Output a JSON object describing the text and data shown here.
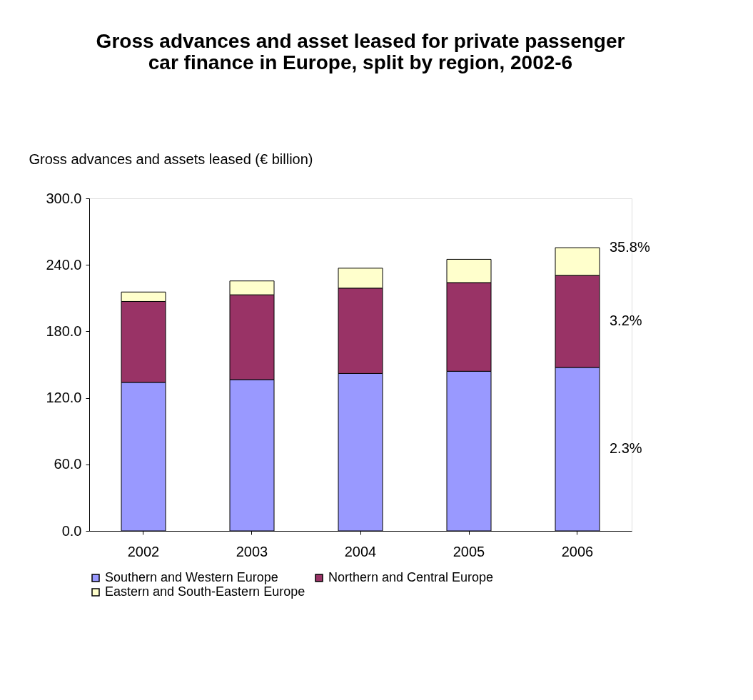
{
  "chart_data": {
    "type": "bar",
    "stacked": true,
    "title": [
      "Gross advances and asset leased for private passenger",
      "car finance in Europe, split by region, 2002-6"
    ],
    "ylabel": "Gross advances and assets leased (€ billion)",
    "categories": [
      "2002",
      "2003",
      "2004",
      "2005",
      "2006"
    ],
    "series": [
      {
        "name": "Southern and Western Europe",
        "color": "#9999ff",
        "values": [
          134,
          136.5,
          142,
          144,
          147.5
        ]
      },
      {
        "name": "Northern and Central Europe",
        "color": "#993366",
        "values": [
          73,
          76.5,
          77,
          80,
          83
        ]
      },
      {
        "name": "Eastern and South-Eastern Europe",
        "color": "#ffffcc",
        "values": [
          8.5,
          12.5,
          18,
          21,
          25
        ]
      }
    ],
    "annotations": [
      "35.8%",
      "3.2%",
      "2.3%"
    ],
    "ylim": [
      0,
      300
    ],
    "yticks": [
      {
        "value": 0,
        "label": "0.0"
      },
      {
        "value": 60,
        "label": "60.0"
      },
      {
        "value": 120,
        "label": "120.0"
      },
      {
        "value": 180,
        "label": "180.0"
      },
      {
        "value": 240,
        "label": "240.0"
      },
      {
        "value": 300,
        "label": "300.0"
      }
    ],
    "grid": false,
    "legend": "bottom"
  }
}
